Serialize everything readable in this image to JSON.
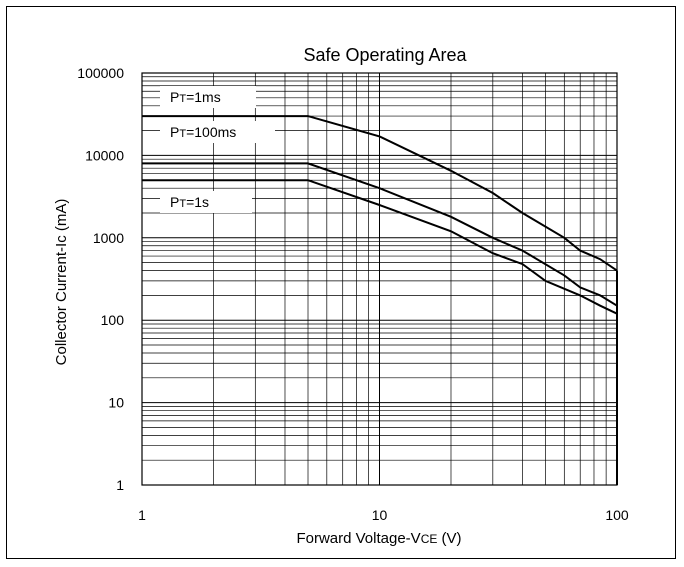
{
  "chart_data": {
    "type": "line",
    "title": "Safe Operating Area",
    "xlabel": "Forward Voltage-VCE (V)",
    "ylabel": "Collector Current-Ic (mA)",
    "x_scale": "log",
    "y_scale": "log",
    "xlim": [
      1,
      100
    ],
    "ylim": [
      1,
      100000
    ],
    "x_ticks": [
      "1",
      "10",
      "100"
    ],
    "y_ticks": [
      "1",
      "10",
      "100",
      "1000",
      "10000",
      "100000"
    ],
    "grid": true,
    "series": [
      {
        "name": "PT=1ms",
        "x": [
          1,
          5,
          10,
          20,
          30,
          40,
          60,
          70,
          85,
          100
        ],
        "y": [
          30000,
          30000,
          17000,
          6500,
          3500,
          2000,
          1000,
          700,
          550,
          400
        ]
      },
      {
        "name": "PT=100ms",
        "x": [
          1,
          5,
          10,
          20,
          30,
          40,
          60,
          70,
          85,
          100
        ],
        "y": [
          8000,
          8000,
          4000,
          1800,
          1000,
          700,
          350,
          250,
          200,
          150
        ]
      },
      {
        "name": "PT=1s",
        "x": [
          1,
          5,
          10,
          20,
          30,
          40,
          50,
          70,
          85,
          100
        ],
        "y": [
          5000,
          5000,
          2500,
          1200,
          650,
          480,
          300,
          200,
          150,
          120
        ]
      }
    ],
    "annotations": [
      {
        "prefix": "P",
        "sub": "T",
        "suffix": "=1ms",
        "series": 0
      },
      {
        "prefix": "P",
        "sub": "T",
        "suffix": "=100ms",
        "series": 1
      },
      {
        "prefix": "P",
        "sub": "T",
        "suffix": "=1s",
        "series": 2
      }
    ]
  }
}
